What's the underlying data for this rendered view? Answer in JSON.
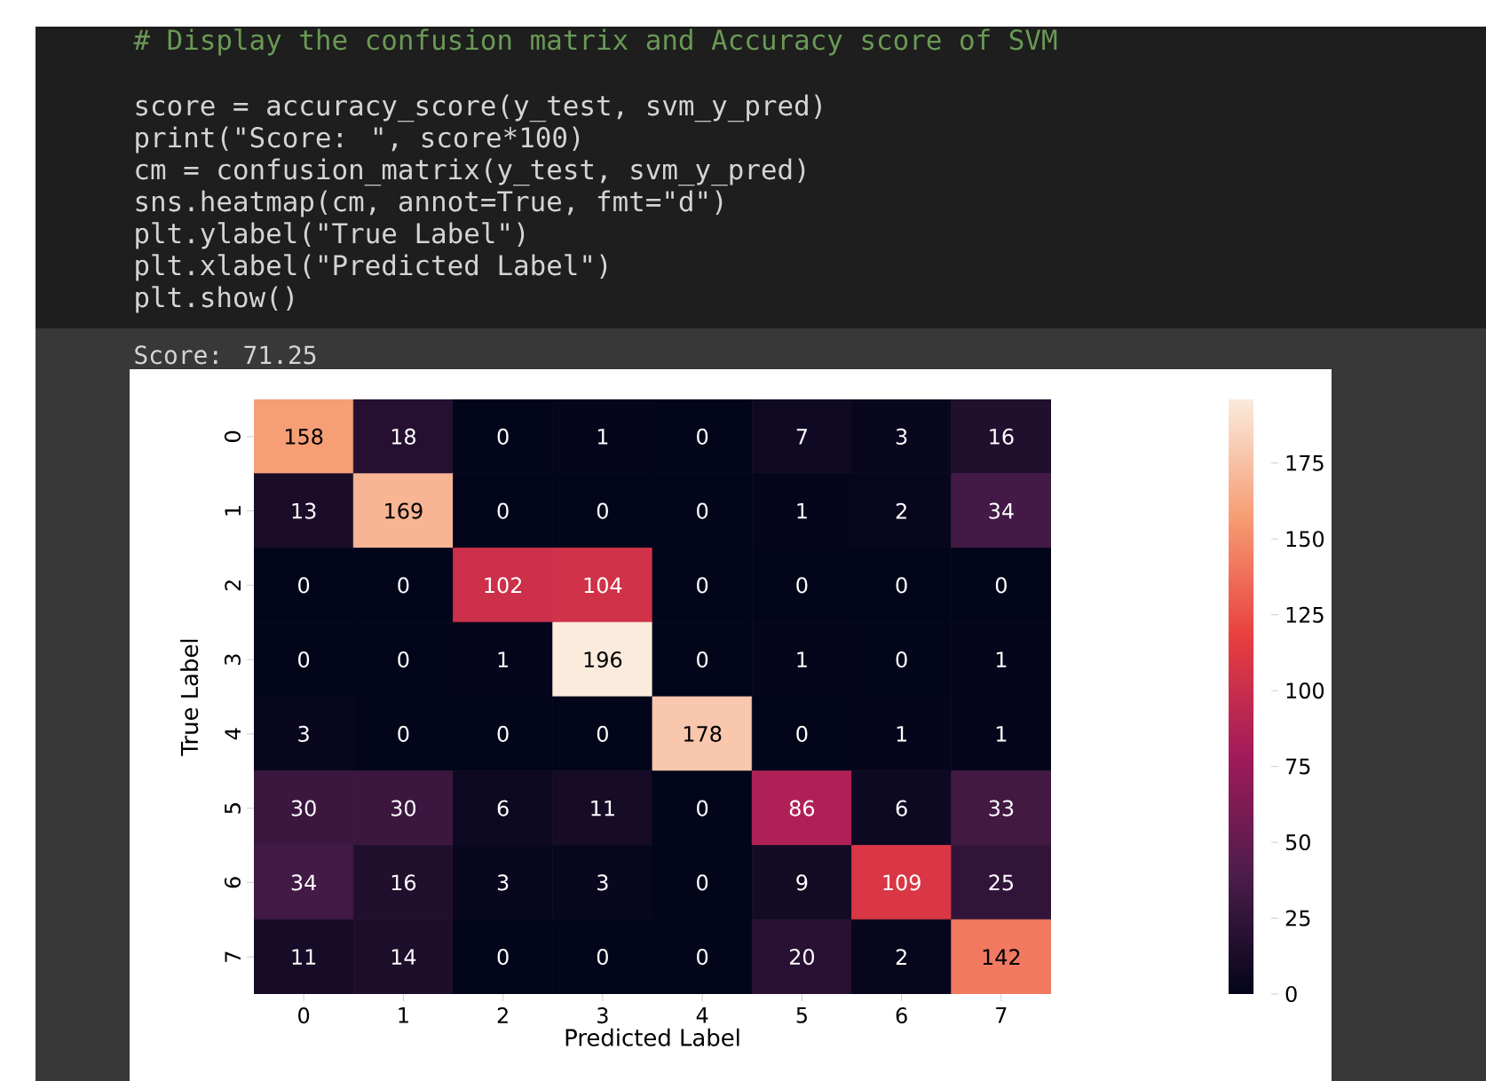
{
  "chart_data": {
    "type": "heatmap",
    "xlabel": "Predicted Label",
    "ylabel": "True Label",
    "categories": [
      "0",
      "1",
      "2",
      "3",
      "4",
      "5",
      "6",
      "7"
    ],
    "y_categories": [
      "0",
      "1",
      "2",
      "3",
      "4",
      "5",
      "6",
      "7"
    ],
    "cells": [
      [
        158,
        18,
        0,
        1,
        0,
        7,
        3,
        16
      ],
      [
        13,
        169,
        0,
        0,
        0,
        1,
        2,
        34
      ],
      [
        0,
        0,
        102,
        104,
        0,
        0,
        0,
        0
      ],
      [
        0,
        0,
        1,
        196,
        0,
        1,
        0,
        1
      ],
      [
        3,
        0,
        0,
        0,
        178,
        0,
        1,
        1
      ],
      [
        30,
        30,
        6,
        11,
        0,
        86,
        6,
        33
      ],
      [
        34,
        16,
        3,
        3,
        0,
        9,
        109,
        25
      ],
      [
        11,
        14,
        0,
        0,
        0,
        20,
        2,
        142
      ]
    ],
    "data_labels": true,
    "clim": [
      0,
      196
    ],
    "cticks": [
      0,
      25,
      50,
      75,
      100,
      125,
      150,
      175
    ],
    "annotations": [
      "# Display the confusion matrix and Accuracy score of SVM",
      "score = accuracy_score(y_test, svm_y_pred)",
      "print(\"Score: \", score*100)",
      "cm = confusion_matrix(y_test, svm_y_pred)",
      "sns.heatmap(cm, annot=True, fmt=\"d\")",
      "plt.ylabel(\"True Label\")",
      "plt.xlabel(\"Predicted Label\")",
      "plt.show()",
      "Score:  71.25"
    ]
  }
}
